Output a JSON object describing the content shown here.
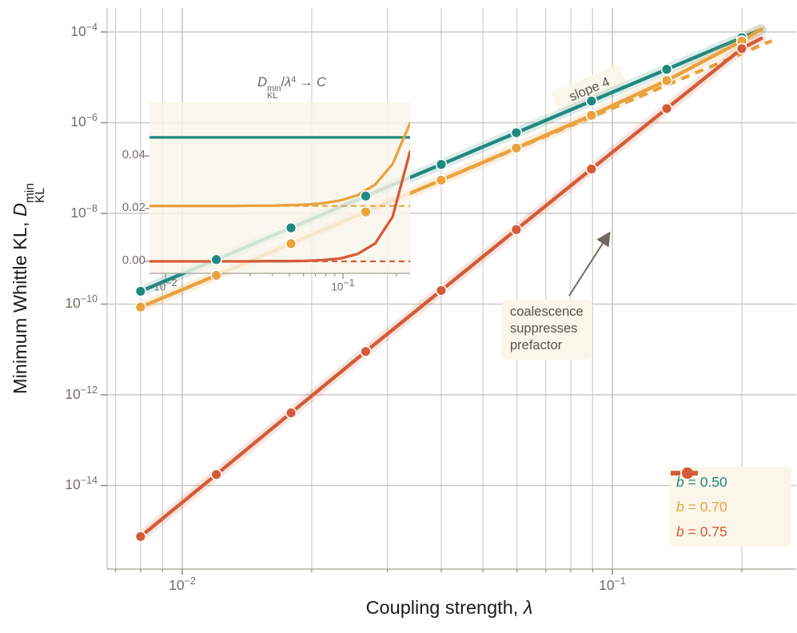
{
  "figure": {
    "bg": "#ffffff"
  },
  "axes": {
    "xlabel": {
      "text": "Coupling strength,",
      "symbol": "λ"
    },
    "ylabel": {
      "pre": "Minimum Whittle KL,",
      "D": "D",
      "sup": "min",
      "sub": "KL"
    },
    "x_ticks": [
      {
        "base": "10",
        "exp": "−2"
      },
      {
        "base": "10",
        "exp": "−1"
      }
    ],
    "y_ticks": [
      {
        "base": "10",
        "exp": "−4"
      },
      {
        "base": "10",
        "exp": "−6"
      },
      {
        "base": "10",
        "exp": "−8"
      },
      {
        "base": "10",
        "exp": "−10"
      },
      {
        "base": "10",
        "exp": "−12"
      },
      {
        "base": "10",
        "exp": "−14"
      }
    ]
  },
  "annotations": {
    "slope_label": "slope 4",
    "note_lines": [
      "coalescence",
      "suppresses",
      "prefactor"
    ]
  },
  "legend": {
    "items": [
      {
        "var": "b",
        "rest": "= 0.50",
        "color": "#20897f"
      },
      {
        "var": "b",
        "rest": "= 0.70",
        "color": "#e9a23d"
      },
      {
        "var": "b",
        "rest": "= 0.75",
        "color": "#d55b38"
      }
    ]
  },
  "inset": {
    "title": {
      "D": "D",
      "sup": "min",
      "sub": "KL",
      "mid": "/",
      "lam": "λ",
      "exp": "4",
      "post": "→",
      "C": "C"
    },
    "x_ticks": [
      {
        "base": "10",
        "exp": "−2"
      },
      {
        "base": "10",
        "exp": "−1"
      }
    ],
    "y_ticks": [
      "0.00",
      "0.02",
      "0.04"
    ]
  },
  "chart_data": {
    "type": "line",
    "title": "",
    "xlabel": "Coupling strength, λ",
    "ylabel": "Minimum Whittle KL, D_KL^min",
    "xscale": "log",
    "yscale": "log",
    "xlim": [
      0.0066,
      0.266
    ],
    "ylim": [
      1.4e-16,
      0.00034
    ],
    "grid": true,
    "legend_position": "lower right",
    "x_gridlines_minor": [
      0.007,
      0.008,
      0.009,
      0.02,
      0.03,
      0.04,
      0.05,
      0.06,
      0.07,
      0.08,
      0.09,
      0.2
    ],
    "x_gridlines_major": [
      0.01,
      0.1
    ],
    "y_gridlines": [
      0.0001,
      1e-06,
      1e-08,
      1e-10,
      1e-12,
      1e-14
    ],
    "series": [
      {
        "name": "b = 0.50",
        "color": "#20897f",
        "glow": "rgba(32,137,127,0.16)",
        "lambda": [
          0.008,
          0.012,
          0.0179,
          0.0267,
          0.04,
          0.0598,
          0.0894,
          0.1338,
          0.2
        ],
        "D": [
          1.92e-10,
          9.6e-10,
          4.8e-09,
          2.41e-08,
          1.2e-07,
          6e-07,
          3e-06,
          1.5e-05,
          7.5e-05
        ],
        "end": [
          0.222,
          0.000114
        ]
      },
      {
        "name": "b = 0.70",
        "color": "#e9a23d",
        "glow": "rgba(233,162,61,0.18)",
        "lambda": [
          0.008,
          0.012,
          0.0179,
          0.0267,
          0.04,
          0.0598,
          0.0894,
          0.1338,
          0.2
        ],
        "D": [
          8.6e-11,
          4.3e-10,
          2.15e-09,
          1.08e-08,
          5.4e-08,
          2.75e-07,
          1.45e-06,
          8.5e-06,
          6.3e-05
        ],
        "end": [
          0.222,
          0.000116
        ]
      },
      {
        "name": "b = 0.75",
        "color": "#d55b38",
        "glow": "rgba(213,91,56,0.16)",
        "lambda": [
          0.008,
          0.012,
          0.0179,
          0.0267,
          0.04,
          0.0598,
          0.0894,
          0.1338,
          0.2
        ],
        "D": [
          7.5e-16,
          1.75e-14,
          4e-13,
          9e-12,
          2e-10,
          4.4e-09,
          9.5e-08,
          2.05e-06,
          4.3e-05
        ],
        "end": [
          0.222,
          7.2e-05
        ]
      }
    ],
    "slope4_reference": {
      "C": 0.021,
      "exponent": 4,
      "lambda_range": [
        0.047,
        0.235
      ],
      "color": "#e9a23d",
      "style": "dashed",
      "label": "slope 4"
    },
    "inset_chart": {
      "type": "line",
      "xscale": "log",
      "title": "D_KL^min / λ^4 → C",
      "xlim": [
        0.008,
        0.24
      ],
      "ylim": [
        -0.0045,
        0.06
      ],
      "yticks": [
        0.0,
        0.02,
        0.04
      ],
      "lambda": [
        0.008,
        0.01,
        0.0126,
        0.0158,
        0.0198,
        0.0248,
        0.0311,
        0.039,
        0.049,
        0.0614,
        0.077,
        0.0966,
        0.1211,
        0.1519,
        0.1905,
        0.2389
      ],
      "series": [
        {
          "name": "b = 0.50",
          "color": "#20897f",
          "ratio": [
            0.047,
            0.047,
            0.047,
            0.047,
            0.047,
            0.047,
            0.047,
            0.047,
            0.047,
            0.047,
            0.047,
            0.047,
            0.047,
            0.047,
            0.047,
            0.047
          ]
        },
        {
          "name": "b = 0.70",
          "color": "#e9a23d",
          "ratio": [
            0.021,
            0.021,
            0.021,
            0.021,
            0.021,
            0.021,
            0.0211,
            0.0211,
            0.0213,
            0.0215,
            0.022,
            0.0231,
            0.0251,
            0.0291,
            0.0369,
            0.0524
          ]
        },
        {
          "name": "b = 0.75",
          "color": "#d55b38",
          "ratio": [
            0,
            0,
            0,
            0,
            0,
            0,
            0,
            0.0001,
            0.0001,
            0.0002,
            0.0005,
            0.0011,
            0.0028,
            0.0068,
            0.0169,
            0.0417
          ]
        }
      ],
      "asymptotes": [
        {
          "color": "#e9a23d",
          "value": 0.021
        },
        {
          "color": "#d55b38",
          "value": 0.0
        }
      ]
    }
  }
}
